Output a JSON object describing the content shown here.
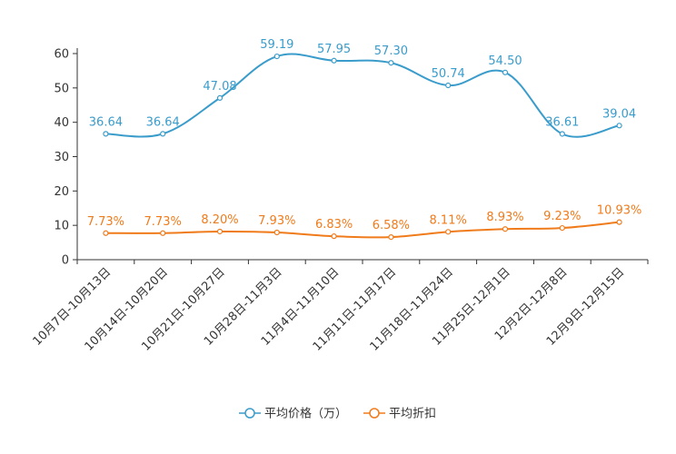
{
  "chart_data": {
    "type": "line",
    "title": "",
    "xlabel": "",
    "ylabel": "",
    "ylim": [
      0,
      60
    ],
    "yticks": [
      "0",
      "10",
      "20",
      "30",
      "40",
      "50",
      "60"
    ],
    "categories": [
      "10月7日-10月13日",
      "10月14日-10月20日",
      "10月21日-10月27日",
      "10月28日-11月3日",
      "11月4日-11月10日",
      "11月11日-11月17日",
      "11月18日-11月24日",
      "11月25日-12月1日",
      "12月2日-12月8日",
      "12月9日-12月15日"
    ],
    "series": [
      {
        "name": "平均价格（万）",
        "color": "#3a9ccb",
        "values": [
          36.64,
          36.64,
          47.08,
          59.19,
          57.95,
          57.3,
          50.74,
          54.5,
          36.61,
          39.04
        ],
        "labels": [
          "36.64",
          "36.64",
          "47.08",
          "59.19",
          "57.95",
          "57.30",
          "50.74",
          "54.50",
          "36.61",
          "39.04"
        ]
      },
      {
        "name": "平均折扣",
        "color": "#f07b1b",
        "values": [
          7.73,
          7.73,
          8.2,
          7.93,
          6.83,
          6.58,
          8.11,
          8.93,
          9.23,
          10.93
        ],
        "labels": [
          "7.73%",
          "7.73%",
          "8.20%",
          "7.93%",
          "6.83%",
          "6.58%",
          "8.11%",
          "8.93%",
          "9.23%",
          "10.93%"
        ]
      }
    ],
    "legend_position": "bottom-center"
  }
}
